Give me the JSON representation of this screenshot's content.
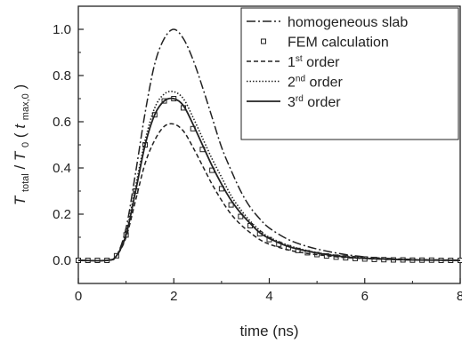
{
  "chart_data": {
    "type": "line",
    "title": "",
    "xlabel": "time (ns)",
    "ylabel": {
      "T": "T",
      "total": "total",
      "slash": " / ",
      "T0": "T",
      "zero": "0",
      "open": "(",
      "t": "t",
      "sub": "max,0",
      "close": ")"
    },
    "xlim": [
      0,
      8
    ],
    "ylim": [
      -0.1,
      1.1
    ],
    "xticks": [
      0,
      2,
      4,
      6,
      8
    ],
    "yticks": [
      0.0,
      0.2,
      0.4,
      0.6,
      0.8,
      1.0
    ],
    "ytick_labels": [
      "0.0",
      "0.2",
      "0.4",
      "0.6",
      "0.8",
      "1.0"
    ],
    "grid": false,
    "legend_position": "top-right",
    "series": [
      {
        "name": "homogeneous slab",
        "style": "dashdot",
        "x": [
          0,
          0.6,
          0.8,
          1.0,
          1.2,
          1.4,
          1.6,
          1.8,
          2.0,
          2.2,
          2.4,
          2.6,
          2.8,
          3.0,
          3.2,
          3.4,
          3.6,
          3.8,
          4.0,
          4.4,
          4.8,
          5.2,
          5.6,
          6.0,
          6.5,
          7.0,
          7.5,
          8.0
        ],
        "y": [
          0,
          0,
          0.02,
          0.14,
          0.38,
          0.64,
          0.85,
          0.96,
          1.0,
          0.96,
          0.87,
          0.75,
          0.62,
          0.49,
          0.39,
          0.3,
          0.23,
          0.18,
          0.14,
          0.09,
          0.06,
          0.04,
          0.025,
          0.015,
          0.008,
          0.004,
          0.002,
          0.001
        ]
      },
      {
        "name": "FEM calculation",
        "style": "square-markers",
        "x": [
          0,
          0.2,
          0.4,
          0.6,
          0.8,
          1.0,
          1.2,
          1.4,
          1.6,
          1.8,
          2.0,
          2.2,
          2.4,
          2.6,
          2.8,
          3.0,
          3.2,
          3.4,
          3.6,
          3.8,
          4.0,
          4.2,
          4.4,
          4.6,
          4.8,
          5.0,
          5.2,
          5.4,
          5.6,
          5.8,
          6.0,
          6.2,
          6.4,
          6.6,
          6.8,
          7.0,
          7.2,
          7.4,
          7.6,
          7.8,
          8.0
        ],
        "y": [
          0,
          0,
          0,
          0,
          0.02,
          0.11,
          0.3,
          0.5,
          0.63,
          0.69,
          0.7,
          0.66,
          0.57,
          0.48,
          0.39,
          0.31,
          0.24,
          0.19,
          0.15,
          0.115,
          0.09,
          0.07,
          0.055,
          0.043,
          0.033,
          0.025,
          0.019,
          0.014,
          0.011,
          0.008,
          0.006,
          0.004,
          0.003,
          0.002,
          0.002,
          0.001,
          0.001,
          0.001,
          0,
          0,
          0
        ]
      },
      {
        "name": "1st order",
        "name_base": "1",
        "name_sup": "st",
        "name_rest": " order",
        "style": "dashed",
        "x": [
          0,
          0.6,
          0.8,
          1.0,
          1.2,
          1.4,
          1.6,
          1.8,
          2.0,
          2.2,
          2.4,
          2.6,
          2.8,
          3.0,
          3.2,
          3.4,
          3.6,
          3.8,
          4.0,
          4.4,
          4.8,
          5.2,
          5.6,
          6.0,
          6.5,
          7.0,
          7.5,
          8.0
        ],
        "y": [
          0,
          0,
          0.02,
          0.1,
          0.26,
          0.42,
          0.52,
          0.58,
          0.59,
          0.56,
          0.49,
          0.41,
          0.33,
          0.26,
          0.2,
          0.155,
          0.12,
          0.09,
          0.07,
          0.045,
          0.03,
          0.02,
          0.012,
          0.008,
          0.004,
          0.002,
          0.001,
          0
        ]
      },
      {
        "name": "2nd order",
        "name_base": "2",
        "name_sup": "nd",
        "name_rest": " order",
        "style": "dotted",
        "x": [
          0,
          0.6,
          0.8,
          1.0,
          1.2,
          1.4,
          1.6,
          1.8,
          2.0,
          2.2,
          2.4,
          2.6,
          2.8,
          3.0,
          3.2,
          3.4,
          3.6,
          3.8,
          4.0,
          4.4,
          4.8,
          5.2,
          5.6,
          6.0,
          6.5,
          7.0,
          7.5,
          8.0
        ],
        "y": [
          0,
          0,
          0.02,
          0.12,
          0.32,
          0.52,
          0.66,
          0.72,
          0.73,
          0.7,
          0.62,
          0.53,
          0.44,
          0.36,
          0.28,
          0.22,
          0.17,
          0.13,
          0.1,
          0.065,
          0.042,
          0.027,
          0.017,
          0.01,
          0.006,
          0.003,
          0.001,
          0
        ]
      },
      {
        "name": "3rd order",
        "name_base": "3",
        "name_sup": "rd",
        "name_rest": " order",
        "style": "solid",
        "x": [
          0,
          0.6,
          0.8,
          1.0,
          1.2,
          1.4,
          1.6,
          1.8,
          2.0,
          2.2,
          2.4,
          2.6,
          2.8,
          3.0,
          3.2,
          3.4,
          3.6,
          3.8,
          4.0,
          4.4,
          4.8,
          5.2,
          5.6,
          6.0,
          6.5,
          7.0,
          7.5,
          8.0
        ],
        "y": [
          0,
          0,
          0.02,
          0.11,
          0.3,
          0.5,
          0.63,
          0.69,
          0.7,
          0.67,
          0.59,
          0.5,
          0.41,
          0.33,
          0.26,
          0.205,
          0.16,
          0.12,
          0.095,
          0.06,
          0.04,
          0.025,
          0.015,
          0.009,
          0.005,
          0.002,
          0.001,
          0
        ]
      }
    ]
  }
}
